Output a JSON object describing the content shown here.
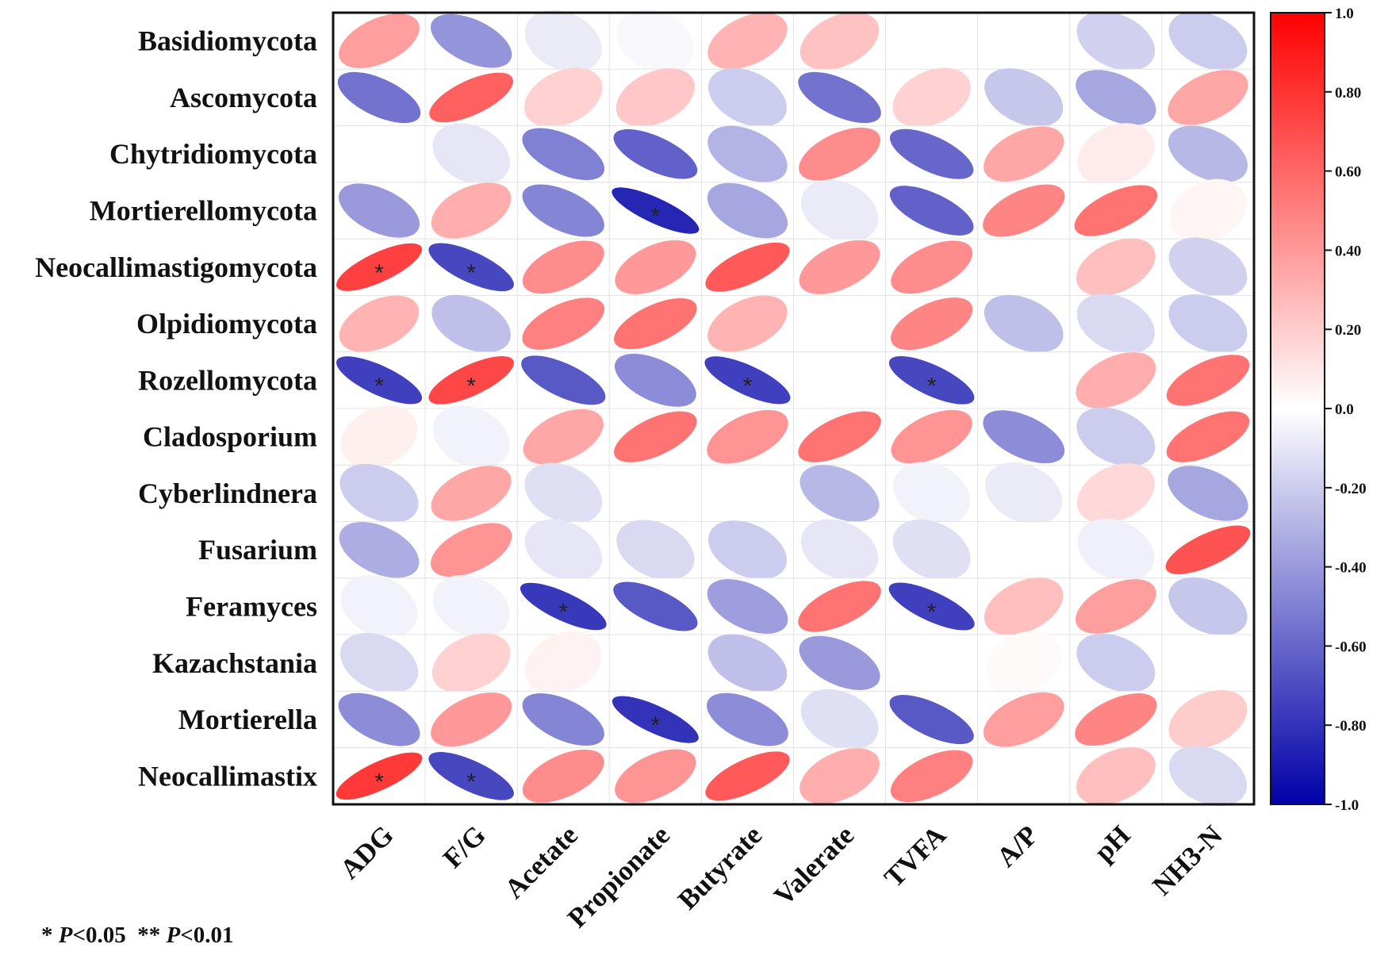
{
  "chart_data": {
    "type": "heatmap",
    "title": "",
    "rows": [
      "Basidiomycota",
      "Ascomycota",
      "Chytridiomycota",
      "Mortierellomycota",
      "Neocallimastigomycota",
      "Olpidiomycota",
      "Rozellomycota",
      "Cladosporium",
      "Cyberlindnera",
      "Fusarium",
      "Feramyces",
      "Kazachstania",
      "Mortierella",
      "Neocallimastix"
    ],
    "columns": [
      "ADG",
      "F/G",
      "Acetate",
      "Propionate",
      "Butyrate",
      "Valerate",
      "TVFA",
      "A/P",
      "pH",
      "NH3-N"
    ],
    "values": [
      [
        0.38,
        -0.42,
        -0.08,
        -0.03,
        0.3,
        0.24,
        0,
        0,
        -0.18,
        -0.2
      ],
      [
        -0.55,
        0.62,
        0.18,
        0.22,
        -0.2,
        -0.55,
        0.18,
        -0.22,
        -0.35,
        0.35
      ],
      [
        -0.01,
        -0.1,
        -0.5,
        -0.62,
        -0.3,
        0.45,
        -0.6,
        0.35,
        0.08,
        -0.28
      ],
      [
        -0.4,
        0.32,
        -0.48,
        -0.85,
        -0.35,
        -0.08,
        -0.62,
        0.48,
        0.55,
        0.04
      ],
      [
        0.75,
        -0.72,
        0.45,
        0.4,
        0.65,
        0.4,
        0.45,
        0,
        0.25,
        -0.18
      ],
      [
        0.3,
        -0.25,
        0.5,
        0.55,
        0.3,
        0,
        0.48,
        -0.25,
        -0.15,
        -0.2
      ],
      [
        -0.75,
        0.72,
        -0.65,
        -0.45,
        -0.75,
        0,
        -0.72,
        0,
        0.32,
        0.55
      ],
      [
        0.06,
        -0.05,
        0.35,
        0.55,
        0.42,
        0.55,
        0.42,
        -0.45,
        -0.2,
        0.55
      ],
      [
        -0.2,
        0.35,
        -0.12,
        0,
        0,
        -0.28,
        -0.05,
        -0.08,
        0.15,
        -0.35
      ],
      [
        -0.32,
        0.42,
        -0.1,
        -0.15,
        -0.2,
        -0.1,
        -0.12,
        0,
        -0.06,
        0.68
      ],
      [
        -0.05,
        -0.05,
        -0.78,
        -0.65,
        -0.38,
        0.55,
        -0.75,
        0.25,
        0.38,
        -0.22
      ],
      [
        -0.15,
        0.18,
        0.05,
        0,
        -0.25,
        -0.4,
        0,
        0.02,
        -0.2,
        0
      ],
      [
        -0.45,
        0.4,
        -0.48,
        -0.8,
        -0.45,
        -0.12,
        -0.65,
        0.38,
        0.48,
        0.2
      ],
      [
        0.78,
        -0.72,
        0.45,
        0.42,
        0.65,
        0.32,
        0.5,
        0,
        0.25,
        -0.15
      ]
    ],
    "significance": [
      [
        4,
        0,
        "*"
      ],
      [
        4,
        1,
        "*"
      ],
      [
        3,
        3,
        "*"
      ],
      [
        6,
        0,
        "*"
      ],
      [
        6,
        1,
        "*"
      ],
      [
        6,
        4,
        "*"
      ],
      [
        6,
        6,
        "*"
      ],
      [
        10,
        2,
        "*"
      ],
      [
        10,
        6,
        "*"
      ],
      [
        12,
        3,
        "*"
      ],
      [
        13,
        0,
        "*"
      ],
      [
        13,
        1,
        "*"
      ]
    ],
    "colorbar": {
      "range": [
        -1.0,
        1.0
      ],
      "ticks": [
        "1.0",
        "0.80",
        "0.60",
        "0.40",
        "0.20",
        "0.0",
        "-0.20",
        "-0.40",
        "-0.60",
        "-0.80",
        "-1.0"
      ],
      "colors": {
        "negative": "#0000a8",
        "zero": "#ffffff",
        "positive": "#ff0000"
      }
    }
  },
  "footnote": {
    "star1": "*",
    "p1": "P",
    "thr1": "<0.05",
    "star2": "**",
    "p2": "P",
    "thr2": "<0.01"
  }
}
